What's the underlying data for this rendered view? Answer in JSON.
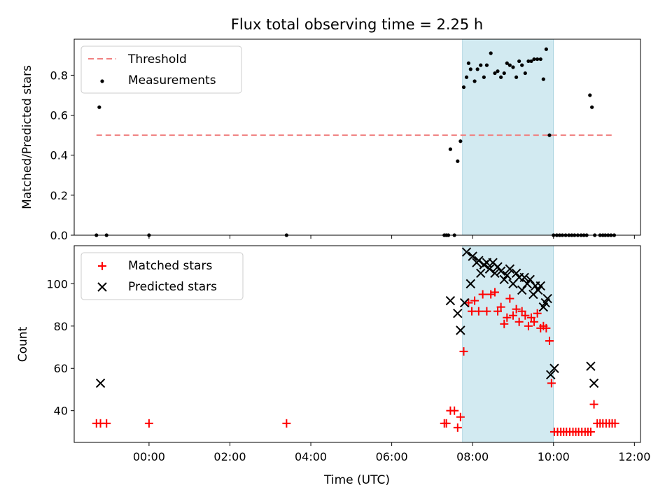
{
  "figure": {
    "title": "Flux total observing time = 2.25 h",
    "x_label": "Time (UTC)",
    "x_tick_labels": [
      "00:00",
      "02:00",
      "04:00",
      "06:00",
      "08:00",
      "10:00",
      "12:00"
    ]
  },
  "chart_data": [
    {
      "type": "scatter",
      "panel": "top",
      "title": "Flux total observing time = 2.25 h",
      "xlabel": "",
      "ylabel": "Matched/Predicted stars",
      "x_unit": "hours (UTC)",
      "xlim": [
        -1.85,
        12.15
      ],
      "ylim": [
        0,
        0.98
      ],
      "yticks": [
        0.0,
        0.2,
        0.4,
        0.6,
        0.8
      ],
      "ytick_labels": [
        "0.0",
        "0.2",
        "0.4",
        "0.6",
        "0.8"
      ],
      "shaded_span": [
        7.75,
        10.0
      ],
      "shaded_color": "#add8e6",
      "series": [
        {
          "name": "Threshold",
          "type": "line",
          "style": "dashed",
          "color": "#f08080",
          "x": [
            -1.3,
            11.5
          ],
          "y": [
            0.5,
            0.5
          ]
        },
        {
          "name": "Measurements",
          "type": "scatter",
          "marker": "dot",
          "color": "#000000",
          "x": [
            -1.3,
            -1.23,
            -1.05,
            0.0,
            3.4,
            7.3,
            7.35,
            7.4,
            7.45,
            7.55,
            7.63,
            7.7,
            7.78,
            7.85,
            7.9,
            7.95,
            8.05,
            8.12,
            8.2,
            8.28,
            8.35,
            8.45,
            8.55,
            8.62,
            8.7,
            8.78,
            8.85,
            8.92,
            9.0,
            9.08,
            9.15,
            9.22,
            9.3,
            9.38,
            9.45,
            9.52,
            9.6,
            9.68,
            9.75,
            9.82,
            9.9,
            10.0,
            10.08,
            10.15,
            10.22,
            10.3,
            10.38,
            10.45,
            10.52,
            10.6,
            10.68,
            10.75,
            10.82,
            10.9,
            10.95,
            11.02,
            11.15,
            11.22,
            11.28,
            11.35,
            11.42,
            11.5
          ],
          "y": [
            0.0,
            0.64,
            0.0,
            0.0,
            0.0,
            0.0,
            0.0,
            0.0,
            0.43,
            0.0,
            0.37,
            0.47,
            0.74,
            0.79,
            0.86,
            0.83,
            0.77,
            0.83,
            0.85,
            0.79,
            0.85,
            0.91,
            0.81,
            0.82,
            0.79,
            0.81,
            0.86,
            0.85,
            0.84,
            0.79,
            0.87,
            0.85,
            0.81,
            0.87,
            0.87,
            0.88,
            0.88,
            0.88,
            0.78,
            0.93,
            0.5,
            0.0,
            0.0,
            0.0,
            0.0,
            0.0,
            0.0,
            0.0,
            0.0,
            0.0,
            0.0,
            0.0,
            0.0,
            0.7,
            0.64,
            0.0,
            0.0,
            0.0,
            0.0,
            0.0,
            0.0,
            0.0
          ]
        }
      ],
      "legend": "upper-left",
      "grid": false
    },
    {
      "type": "scatter",
      "panel": "bottom",
      "title": "",
      "xlabel": "Time (UTC)",
      "ylabel": "Count",
      "x_unit": "hours (UTC)",
      "xlim": [
        -1.85,
        12.15
      ],
      "ylim": [
        25,
        118
      ],
      "yticks": [
        40,
        60,
        80,
        100
      ],
      "ytick_labels": [
        "40",
        "60",
        "80",
        "100"
      ],
      "xticks": [
        0,
        2,
        4,
        6,
        8,
        10,
        12
      ],
      "xtick_labels": [
        "00:00",
        "02:00",
        "04:00",
        "06:00",
        "08:00",
        "10:00",
        "12:00"
      ],
      "shaded_span": [
        7.75,
        10.0
      ],
      "shaded_color": "#add8e6",
      "series": [
        {
          "name": "Matched stars",
          "marker": "plus",
          "color": "#ff0000",
          "x": [
            -1.3,
            -1.2,
            -1.05,
            0.0,
            3.4,
            7.3,
            7.35,
            7.45,
            7.55,
            7.63,
            7.7,
            7.78,
            7.9,
            7.98,
            8.05,
            8.15,
            8.25,
            8.35,
            8.45,
            8.55,
            8.62,
            8.7,
            8.78,
            8.85,
            8.92,
            9.0,
            9.08,
            9.15,
            9.22,
            9.3,
            9.38,
            9.45,
            9.52,
            9.6,
            9.68,
            9.75,
            9.82,
            9.9,
            9.95,
            10.02,
            10.1,
            10.18,
            10.25,
            10.32,
            10.4,
            10.48,
            10.55,
            10.62,
            10.7,
            10.78,
            10.85,
            10.92,
            11.0,
            11.08,
            11.15,
            11.22,
            11.3,
            11.38,
            11.45,
            11.52
          ],
          "y": [
            34,
            34,
            34,
            34,
            34,
            34,
            34,
            40,
            40,
            32,
            37,
            68,
            91,
            87,
            92,
            87,
            95,
            87,
            95,
            96,
            87,
            89,
            81,
            84,
            93,
            85,
            88,
            82,
            87,
            85,
            80,
            84,
            82,
            86,
            79,
            80,
            79,
            73,
            53,
            30,
            30,
            30,
            30,
            30,
            30,
            30,
            30,
            30,
            30,
            30,
            30,
            30,
            43,
            34,
            34,
            34,
            34,
            34,
            34,
            34
          ]
        },
        {
          "name": "Predicted stars",
          "marker": "x",
          "color": "#000000",
          "x": [
            -1.2,
            7.45,
            7.63,
            7.7,
            7.8,
            7.85,
            7.95,
            8.0,
            8.1,
            8.15,
            8.2,
            8.28,
            8.35,
            8.42,
            8.5,
            8.55,
            8.62,
            8.7,
            8.78,
            8.85,
            8.92,
            9.0,
            9.08,
            9.15,
            9.22,
            9.28,
            9.35,
            9.42,
            9.5,
            9.55,
            9.62,
            9.68,
            9.75,
            9.8,
            9.85,
            9.93,
            10.02,
            10.92,
            11.0
          ],
          "y": [
            53,
            92,
            86,
            78,
            91,
            115,
            100,
            113,
            110,
            111,
            105,
            109,
            110,
            107,
            110,
            105,
            108,
            106,
            102,
            104,
            107,
            100,
            105,
            103,
            97,
            103,
            100,
            102,
            95,
            99,
            97,
            99,
            89,
            91,
            93,
            57,
            60,
            61,
            53
          ]
        }
      ],
      "legend": "upper-left",
      "grid": false
    }
  ]
}
